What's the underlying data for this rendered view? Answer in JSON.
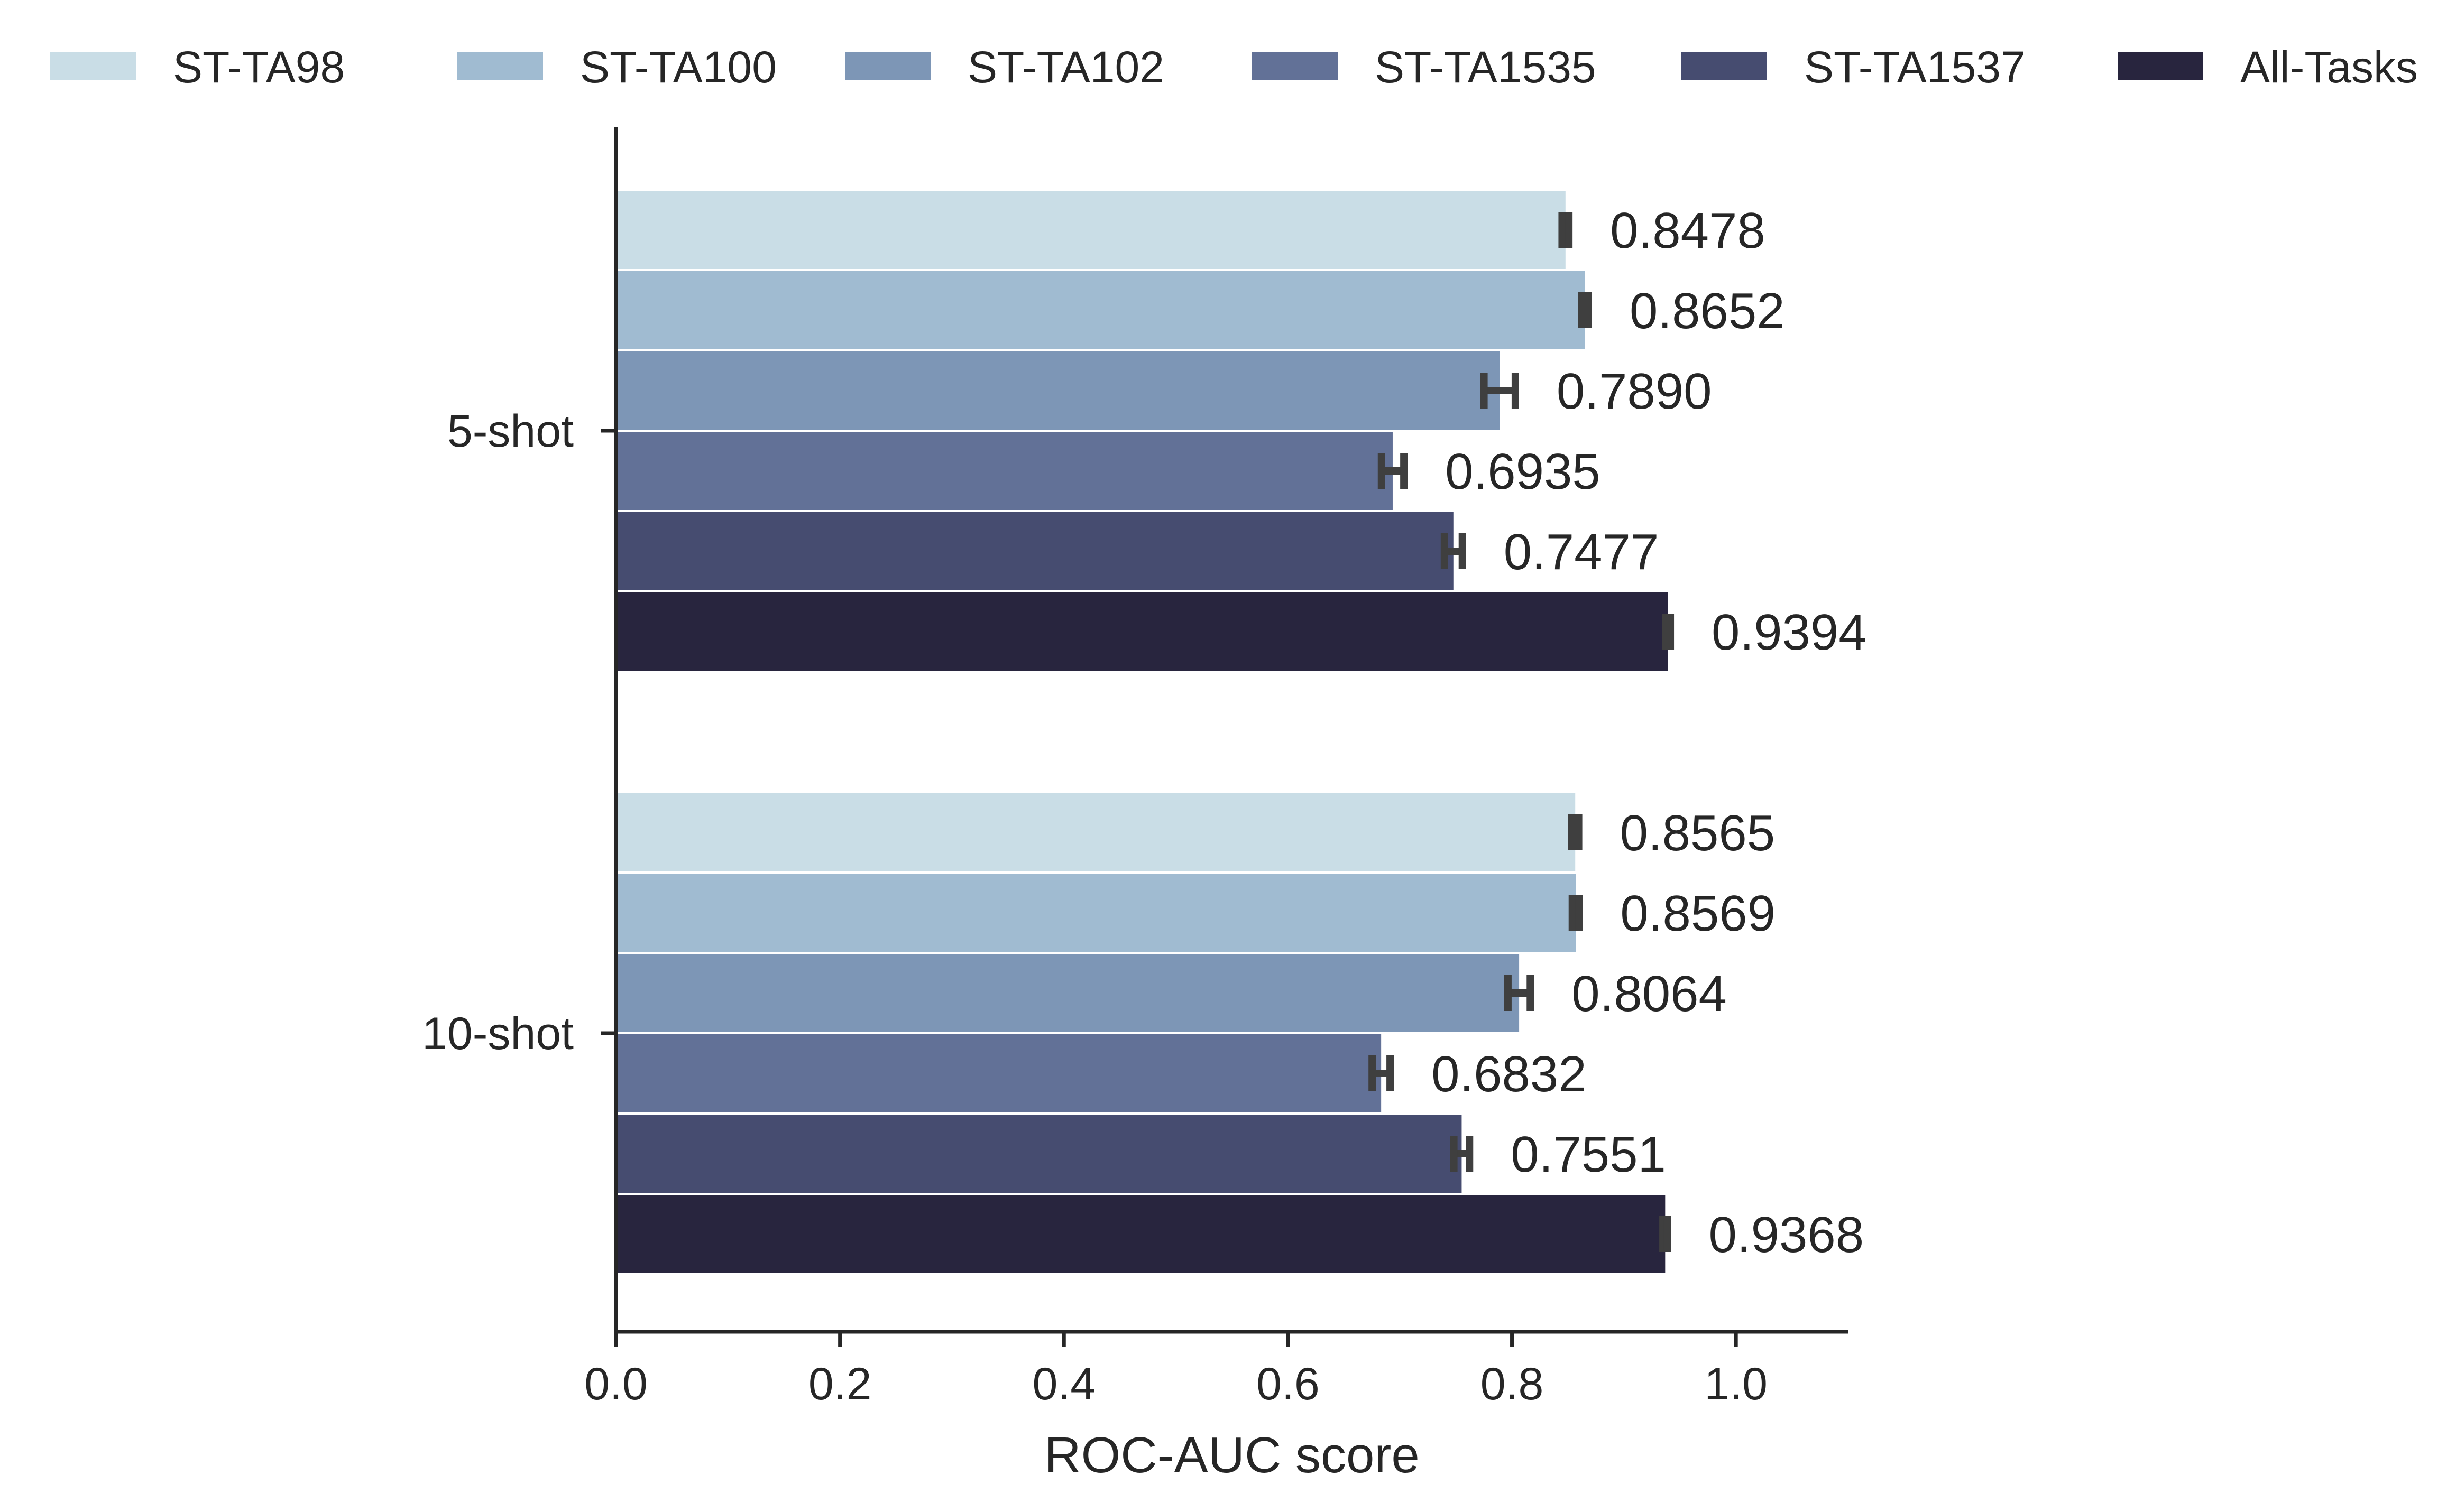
{
  "chart_data": {
    "type": "bar",
    "orientation": "horizontal",
    "categories": [
      "5-shot",
      "10-shot"
    ],
    "series": [
      {
        "name": "ST-TA98",
        "color": "#c9dde6",
        "values": [
          0.8478,
          0.8565
        ],
        "err": [
          0.003,
          0.003
        ]
      },
      {
        "name": "ST-TA100",
        "color": "#a0bbd1",
        "values": [
          0.8652,
          0.8569
        ],
        "err": [
          0.003,
          0.003
        ]
      },
      {
        "name": "ST-TA102",
        "color": "#7d96b6",
        "values": [
          0.789,
          0.8064
        ],
        "err": [
          0.014,
          0.01
        ]
      },
      {
        "name": "ST-TA1535",
        "color": "#627197",
        "values": [
          0.6935,
          0.6832
        ],
        "err": [
          0.01,
          0.008
        ]
      },
      {
        "name": "ST-TA1537",
        "color": "#464c70",
        "values": [
          0.7477,
          0.7551
        ],
        "err": [
          0.008,
          0.007
        ]
      },
      {
        "name": "All-Tasks",
        "color": "#28253e",
        "values": [
          0.9394,
          0.9368
        ],
        "err": [
          0.002,
          0.002
        ]
      }
    ],
    "value_labels": [
      [
        "0.8478",
        "0.8565"
      ],
      [
        "0.8652",
        "0.8569"
      ],
      [
        "0.7890",
        "0.8064"
      ],
      [
        "0.6935",
        "0.6832"
      ],
      [
        "0.7477",
        "0.7551"
      ],
      [
        "0.9394",
        "0.9368"
      ]
    ],
    "xlabel": "ROC-AUC score",
    "ylabel": "",
    "xlim": [
      0,
      1.1
    ],
    "xticks": [
      0.0,
      0.2,
      0.4,
      0.6,
      0.8,
      1.0
    ],
    "xtick_labels": [
      "0.0",
      "0.2",
      "0.4",
      "0.6",
      "0.8",
      "1.0"
    ],
    "grid": false,
    "error_bars": true,
    "legend_position": "top",
    "axis_color": "#262626",
    "errorbar_color": "#3f3f3f"
  }
}
